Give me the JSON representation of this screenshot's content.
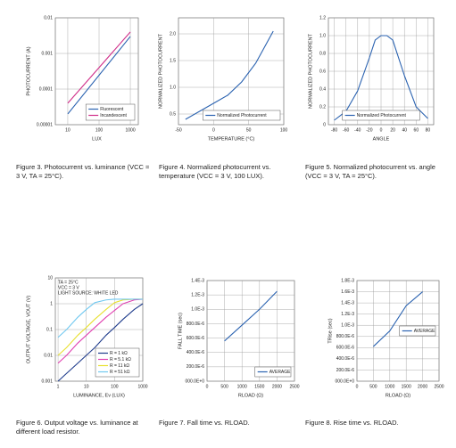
{
  "chart_data": [
    {
      "type": "line",
      "xlabel": "LUX",
      "ylabel": "PHOTOCURRENT (A)",
      "xscale": "log",
      "yscale": "log",
      "x": [
        10,
        1000
      ],
      "xlim": [
        4,
        1800
      ],
      "ylim": [
        1e-05,
        0.01
      ],
      "xticks": [
        10,
        100,
        1000
      ],
      "yticks": [
        1e-05,
        0.0001,
        0.001,
        0.01
      ],
      "grid": true,
      "legend": "lower right",
      "series": [
        {
          "name": "Fluorescent",
          "color": "#2a62b0",
          "values": [
            2e-05,
            0.003
          ]
        },
        {
          "name": "Incandescent",
          "color": "#d0308a",
          "values": [
            4e-05,
            0.004
          ]
        }
      ],
      "caption": "Figure 3. Photocurrent vs. luminance (VCC = 3 V, TA = 25°C)."
    },
    {
      "type": "line",
      "xlabel": "TEMPERATURE (°C)",
      "ylabel": "NORMALIZED PHOTOCURRENT",
      "x": [
        -40,
        -20,
        0,
        20,
        40,
        60,
        85
      ],
      "xlim": [
        -50,
        100
      ],
      "ylim": [
        0.3,
        2.3
      ],
      "xticks": [
        -50,
        0,
        50,
        100
      ],
      "yticks": [
        0.5,
        {
          "value": 1,
          "label": "1.0"
        },
        1.5,
        {
          "value": 2,
          "label": "2.0"
        }
      ],
      "grid": true,
      "legend": "lower right",
      "series": [
        {
          "name": "Normalized Photocurrent",
          "color": "#2a62b0",
          "values": [
            0.4,
            0.55,
            0.7,
            0.85,
            1.1,
            1.45,
            2.05
          ]
        }
      ],
      "caption": "Figure 4. Normalized photocurrent vs. temperature (VCC = 3 V, 100 LUX)."
    },
    {
      "type": "line",
      "xlabel": "ANGLE",
      "ylabel": "NORMALIZED PHOTOCURRENT",
      "x": [
        -80,
        -60,
        -40,
        -20,
        -10,
        0,
        10,
        20,
        40,
        60,
        80
      ],
      "xlim": [
        -90,
        90
      ],
      "ylim": [
        0,
        1.2
      ],
      "xticks": [
        -80,
        -60,
        -40,
        -20,
        0,
        20,
        40,
        60,
        80
      ],
      "yticks": [
        0,
        0.2,
        0.4,
        0.6,
        0.8,
        {
          "value": 1,
          "label": "1.0"
        },
        1.2
      ],
      "grid": true,
      "legend": "lower center",
      "series": [
        {
          "name": "Normalized Photocurrent",
          "color": "#2a62b0",
          "values": [
            0.05,
            0.15,
            0.38,
            0.75,
            0.95,
            1.0,
            1.0,
            0.95,
            0.55,
            0.2,
            0.07
          ]
        }
      ],
      "caption": "Figure 5. Normalized photocurrent vs. angle (VCC = 3 V, TA = 25°C)."
    },
    {
      "type": "line",
      "xlabel": "LUMINANCE, Ev (LUX)",
      "ylabel": "OUTPUT VOLTAGE, VOUT (V)",
      "xscale": "log",
      "yscale": "log",
      "x": [
        1,
        2,
        5,
        10,
        20,
        50,
        100,
        200,
        500,
        1000
      ],
      "xlim": [
        0.8,
        1000
      ],
      "ylim": [
        0.001,
        10
      ],
      "xticks": [
        1,
        10,
        100,
        1000
      ],
      "yticks": [
        0.001,
        0.01,
        0.1,
        1,
        10
      ],
      "grid": true,
      "legend": "lower right",
      "annotations": [
        "TA = 25°C",
        "VCC = 3 V",
        "LIGHT SOURCE: WHITE LED"
      ],
      "series": [
        {
          "name": "R = 1 kΩ",
          "color": "#1f3c8c",
          "values": [
            0.001,
            0.002,
            0.005,
            0.01,
            0.02,
            0.06,
            0.12,
            0.25,
            0.6,
            1.0
          ]
        },
        {
          "name": "R = 5.1 kΩ",
          "color": "#e040b0",
          "values": [
            0.005,
            0.01,
            0.03,
            0.06,
            0.12,
            0.3,
            0.55,
            1.0,
            1.4,
            1.5
          ]
        },
        {
          "name": "R = 11 kΩ",
          "color": "#e8e030",
          "values": [
            0.01,
            0.02,
            0.06,
            0.12,
            0.25,
            0.6,
            1.1,
            1.4,
            1.5,
            1.5
          ]
        },
        {
          "name": "R = 51 kΩ",
          "color": "#70c8f0",
          "values": [
            0.05,
            0.1,
            0.3,
            0.6,
            1.1,
            1.4,
            1.5,
            1.5,
            1.5,
            1.5
          ]
        }
      ],
      "caption": "Figure 6. Output voltage vs. luminance at different load resistor."
    },
    {
      "type": "line",
      "xlabel": "RLOAD (Ω)",
      "ylabel": "FALL TIME (sec)",
      "x": [
        500,
        1000,
        1500,
        2000
      ],
      "xlim": [
        0,
        2500
      ],
      "ylim": [
        0,
        0.0014
      ],
      "xticks": [
        0,
        500,
        1000,
        1500,
        2000,
        2500
      ],
      "yticks": [
        {
          "value": 0,
          "label": "000.0E+0"
        },
        {
          "value": 0.0002,
          "label": "200.0E-6"
        },
        {
          "value": 0.0004,
          "label": "400.0E-6"
        },
        {
          "value": 0.0006,
          "label": "600.0E-6"
        },
        {
          "value": 0.0008,
          "label": "800.0E-6"
        },
        {
          "value": 0.001,
          "label": "1.0E-3"
        },
        {
          "value": 0.0012,
          "label": "1.2E-3"
        },
        {
          "value": 0.0014,
          "label": "1.4E-3"
        }
      ],
      "grid": true,
      "legend": "lower right",
      "series": [
        {
          "name": "AVERAGE",
          "color": "#2a62b0",
          "values": [
            0.00056,
            0.00078,
            0.001,
            0.00125
          ]
        }
      ],
      "caption": "Figure 7. Fall time vs. RLOAD."
    },
    {
      "type": "line",
      "xlabel": "RLOAD (Ω)",
      "ylabel": "TRise (sec)",
      "x": [
        500,
        1000,
        1500,
        2000
      ],
      "xlim": [
        0,
        2500
      ],
      "ylim": [
        0,
        0.0018
      ],
      "xticks": [
        0,
        500,
        1000,
        1500,
        2000,
        2500
      ],
      "yticks": [
        {
          "value": 0,
          "label": "000.0E+0"
        },
        {
          "value": 0.0002,
          "label": "200.0E-6"
        },
        {
          "value": 0.0004,
          "label": "400.0E-6"
        },
        {
          "value": 0.0006,
          "label": "600.0E-6"
        },
        {
          "value": 0.0008,
          "label": "800.0E-6"
        },
        {
          "value": 0.001,
          "label": "1.0E-3"
        },
        {
          "value": 0.0012,
          "label": "1.2E-3"
        },
        {
          "value": 0.0014,
          "label": "1.4E-3"
        },
        {
          "value": 0.0016,
          "label": "1.6E-3"
        },
        {
          "value": 0.0018,
          "label": "1.8E-3"
        }
      ],
      "grid": true,
      "legend": "center right",
      "series": [
        {
          "name": "AVERAGE",
          "color": "#2a62b0",
          "values": [
            0.00062,
            0.0009,
            0.00135,
            0.0016
          ]
        }
      ],
      "caption": "Figure 8. Rise time vs. RLOAD."
    }
  ]
}
